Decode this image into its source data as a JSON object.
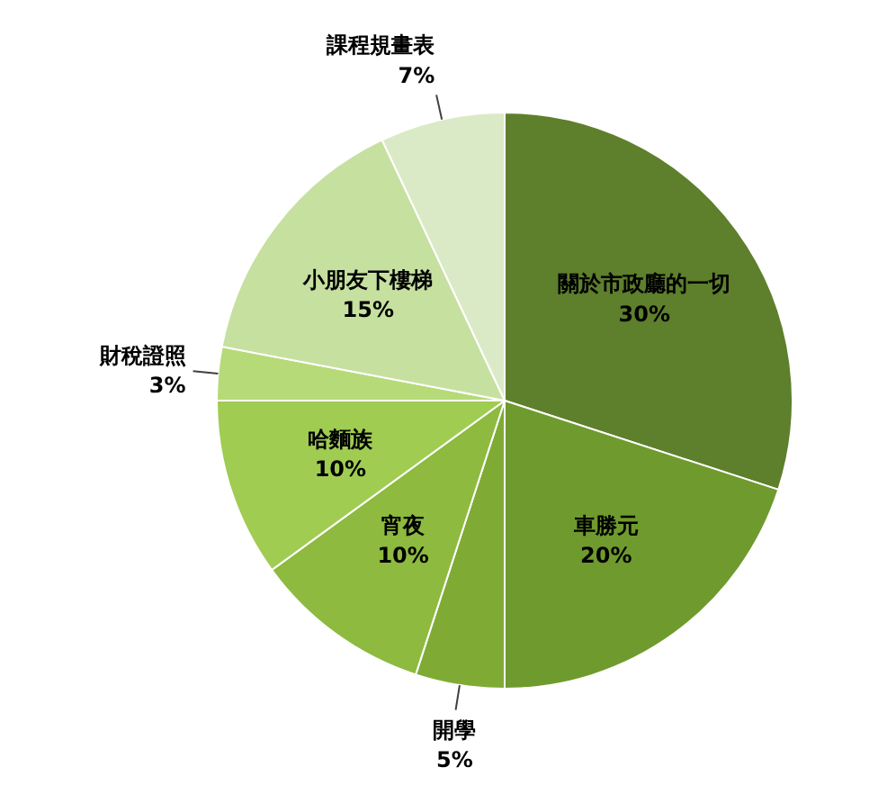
{
  "chart_data": {
    "type": "pie",
    "categories": [
      "關於市政廳的一切",
      "車勝元",
      "開學",
      "宵夜",
      "哈麵族",
      "財稅證照",
      "小朋友下樓梯",
      "課程規畫表"
    ],
    "values": [
      30,
      20,
      5,
      10,
      10,
      3,
      15,
      7
    ],
    "value_labels": [
      "30%",
      "20%",
      "5%",
      "10%",
      "10%",
      "3%",
      "15%",
      "7%"
    ],
    "colors": [
      "#5e7f2c",
      "#6f9a2e",
      "#7fab35",
      "#8dba3f",
      "#a0cc52",
      "#b6da78",
      "#c6e0a0",
      "#dbeac6"
    ]
  }
}
